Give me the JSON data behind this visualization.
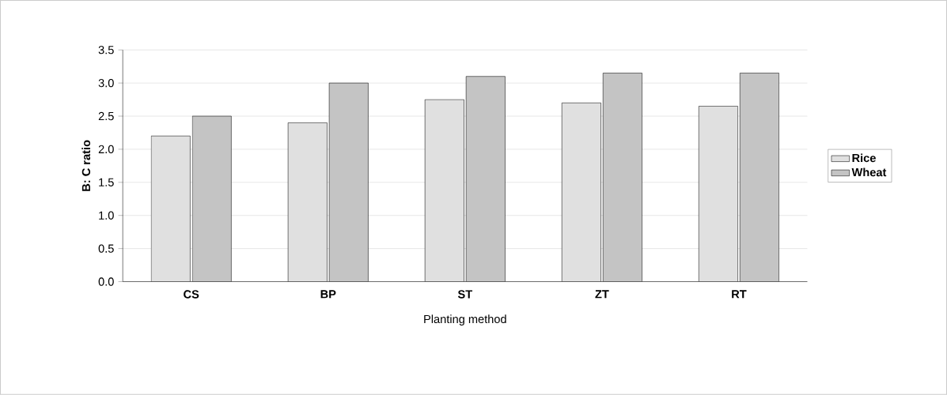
{
  "chart_data": {
    "type": "bar",
    "xlabel": "Planting method",
    "ylabel": "B: C ratio",
    "categories": [
      "CS",
      "BP",
      "ST",
      "ZT",
      "RT"
    ],
    "series": [
      {
        "name": "Rice",
        "color": "#e0e0e0",
        "values": [
          2.2,
          2.4,
          2.75,
          2.7,
          2.65
        ]
      },
      {
        "name": "Wheat",
        "color": "#c4c4c4",
        "values": [
          2.5,
          3.0,
          3.1,
          3.15,
          3.15
        ]
      }
    ],
    "ylim": [
      0,
      3.5
    ],
    "yticks": [
      {
        "value": 0,
        "label": "0.0"
      },
      0.5,
      {
        "value": 1,
        "label": "1.0"
      },
      1.5,
      {
        "value": 2,
        "label": "2.0"
      },
      2.5,
      {
        "value": 3,
        "label": "3.0"
      },
      3.5
    ],
    "grid": "y",
    "legend": "right"
  }
}
